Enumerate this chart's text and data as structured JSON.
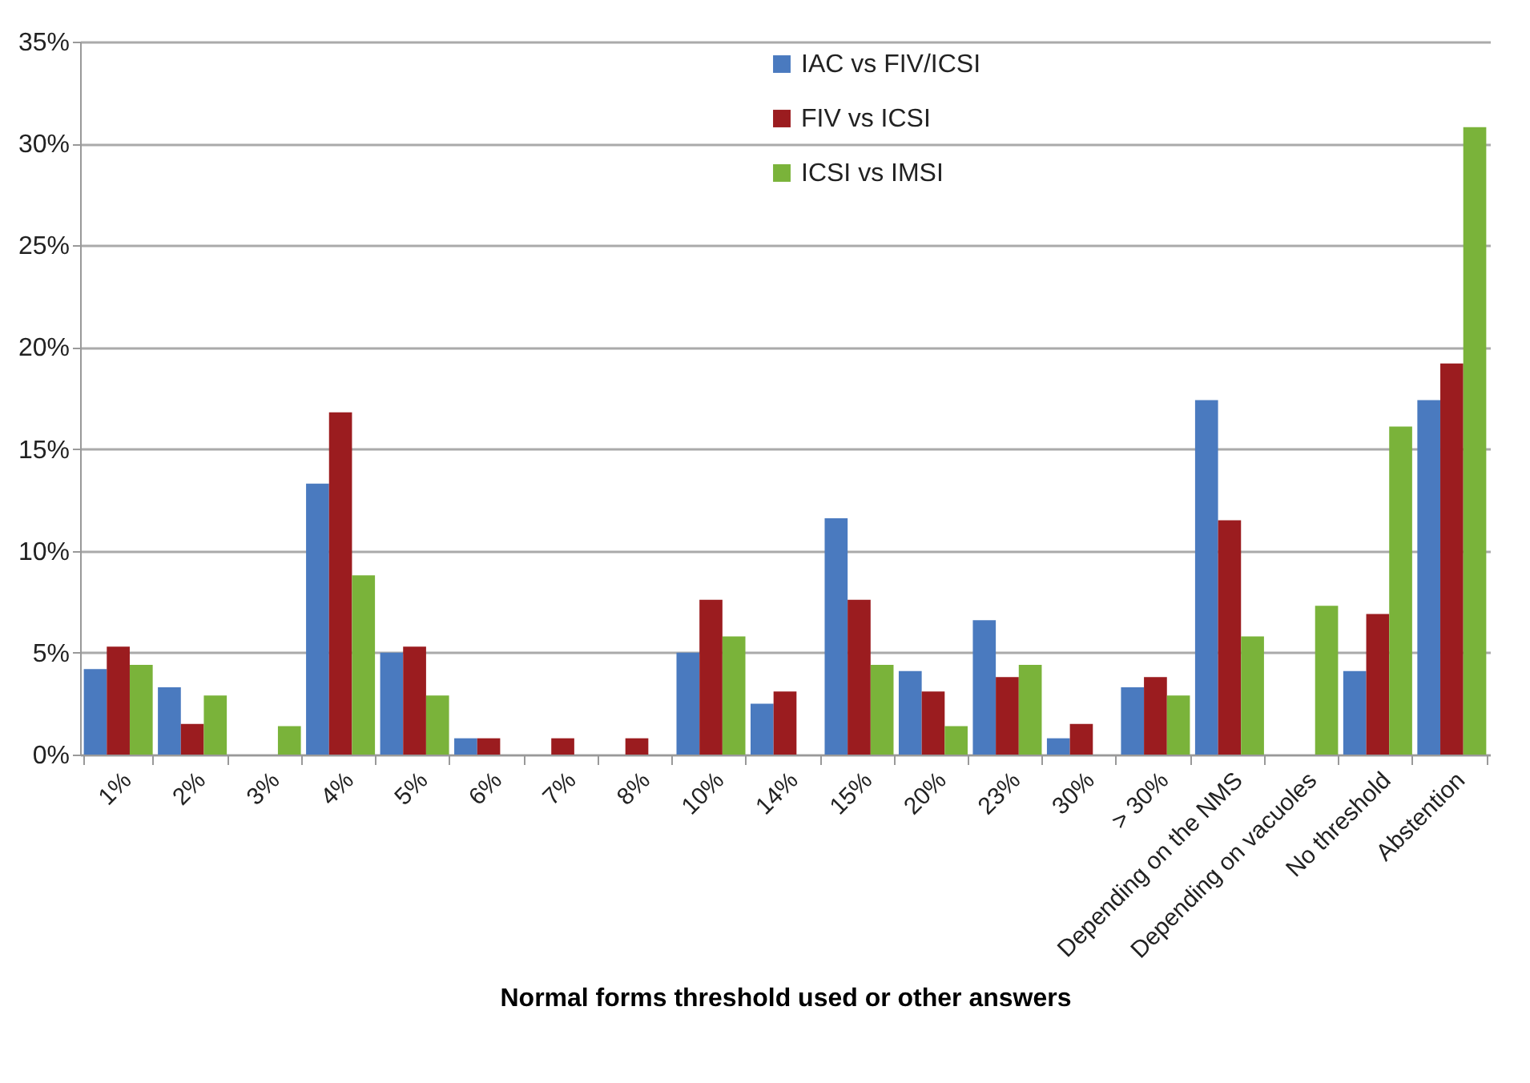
{
  "chart_data": {
    "type": "bar",
    "xlabel": "Normal forms threshold used or other answers",
    "categories": [
      "1%",
      "2%",
      "3%",
      "4%",
      "5%",
      "6%",
      "7%",
      "8%",
      "10%",
      "14%",
      "15%",
      "20%",
      "23%",
      "30%",
      "> 30%",
      "Depending on the NMS",
      "Depending on vacuoles",
      "No threshold",
      "Abstention"
    ],
    "series": [
      {
        "name": "IAC vs FIV/ICSI",
        "color": "#4a7abf",
        "values": [
          4.2,
          3.3,
          0,
          13.3,
          5.0,
          0.8,
          0,
          0,
          5.0,
          2.5,
          11.6,
          4.1,
          6.6,
          0.8,
          3.3,
          17.4,
          0,
          4.1,
          17.4
        ]
      },
      {
        "name": "FIV vs ICSI",
        "color": "#9b1c1f",
        "values": [
          5.3,
          1.5,
          0,
          16.8,
          5.3,
          0.8,
          0.8,
          0.8,
          7.6,
          3.1,
          7.6,
          3.1,
          3.8,
          1.5,
          3.8,
          11.5,
          0,
          6.9,
          19.2
        ]
      },
      {
        "name": "ICSI vs IMSI",
        "color": "#7ab33a",
        "values": [
          4.4,
          2.9,
          1.4,
          8.8,
          2.9,
          0,
          0,
          0,
          5.8,
          0,
          4.4,
          1.4,
          4.4,
          0,
          2.9,
          5.8,
          7.3,
          16.1,
          30.8
        ]
      }
    ],
    "ylim": [
      0,
      35
    ],
    "yticks": [
      {
        "value": 0,
        "label": "0%"
      },
      {
        "value": 5,
        "label": "5%"
      },
      {
        "value": 10,
        "label": "10%"
      },
      {
        "value": 15,
        "label": "15%"
      },
      {
        "value": 20,
        "label": "20%"
      },
      {
        "value": 25,
        "label": "25%"
      },
      {
        "value": 30,
        "label": "30%"
      },
      {
        "value": 35,
        "label": "35%"
      }
    ],
    "grid": "y",
    "legend": "top"
  }
}
